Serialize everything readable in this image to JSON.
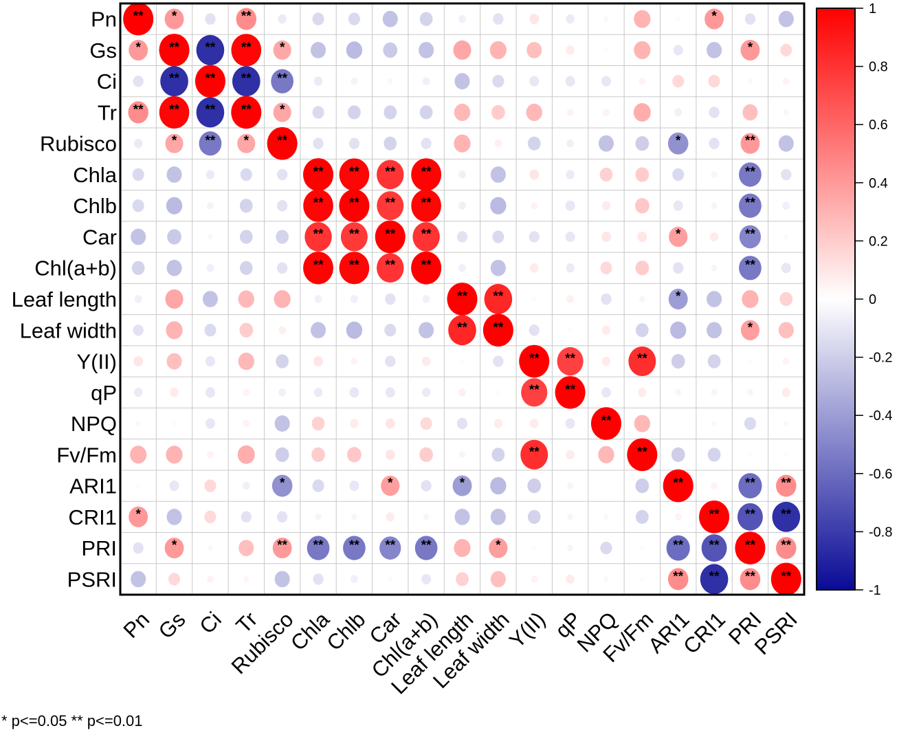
{
  "chart_data": {
    "type": "heatmap",
    "subtype": "correlation-circle-matrix",
    "title": "",
    "variables": [
      "Pn",
      "Gs",
      "Ci",
      "Tr",
      "Rubisco",
      "Chla",
      "Chlb",
      "Car",
      "Chl(a+b)",
      "Leaf length",
      "Leaf width",
      "Y(II)",
      "qP",
      "NPQ",
      "Fv/Fm",
      "ARI1",
      "CRI1",
      "PRI",
      "PSRI"
    ],
    "matrix": [
      [
        1.0,
        0.4,
        -0.12,
        0.45,
        -0.08,
        -0.15,
        -0.15,
        -0.25,
        -0.18,
        -0.06,
        -0.12,
        0.1,
        -0.08,
        0.03,
        0.3,
        0.02,
        0.4,
        -0.12,
        -0.25
      ],
      [
        0.4,
        1.0,
        -0.85,
        0.98,
        0.35,
        -0.25,
        -0.28,
        -0.22,
        -0.25,
        0.35,
        0.3,
        0.25,
        0.08,
        0.02,
        0.3,
        -0.1,
        -0.25,
        0.4,
        0.15
      ],
      [
        -0.12,
        -0.85,
        1.0,
        -0.85,
        -0.55,
        -0.08,
        -0.05,
        -0.03,
        -0.06,
        -0.25,
        -0.15,
        -0.1,
        -0.1,
        -0.1,
        0.05,
        0.15,
        0.15,
        0.03,
        0.05
      ],
      [
        0.45,
        0.98,
        -0.85,
        1.0,
        0.35,
        -0.15,
        -0.18,
        -0.18,
        -0.18,
        0.28,
        0.2,
        0.28,
        0.05,
        0.05,
        0.32,
        -0.06,
        -0.12,
        0.25,
        0.04
      ],
      [
        -0.08,
        0.35,
        -0.55,
        0.35,
        1.0,
        -0.12,
        -0.12,
        -0.18,
        -0.12,
        0.3,
        0.06,
        -0.18,
        -0.06,
        -0.25,
        -0.2,
        -0.45,
        -0.12,
        0.4,
        -0.25
      ],
      [
        -0.15,
        -0.25,
        -0.08,
        -0.15,
        -0.12,
        1.0,
        0.98,
        0.8,
        0.99,
        -0.06,
        -0.25,
        0.1,
        -0.08,
        0.18,
        0.2,
        -0.15,
        -0.04,
        -0.55,
        -0.12
      ],
      [
        -0.15,
        -0.28,
        -0.05,
        -0.18,
        -0.12,
        0.98,
        1.0,
        0.78,
        0.98,
        -0.06,
        -0.28,
        0.05,
        -0.1,
        0.08,
        0.22,
        -0.1,
        -0.04,
        -0.55,
        -0.06
      ],
      [
        -0.25,
        -0.22,
        -0.03,
        -0.18,
        -0.18,
        0.8,
        0.78,
        1.0,
        0.8,
        -0.12,
        -0.15,
        -0.12,
        -0.1,
        0.1,
        0.1,
        0.38,
        0.08,
        -0.5,
        -0.02
      ],
      [
        -0.18,
        -0.25,
        -0.06,
        -0.18,
        -0.12,
        0.99,
        0.98,
        0.8,
        1.0,
        -0.06,
        -0.25,
        0.08,
        -0.08,
        0.15,
        0.2,
        -0.12,
        -0.04,
        -0.55,
        -0.1
      ],
      [
        -0.06,
        0.35,
        -0.25,
        0.28,
        0.3,
        -0.06,
        -0.06,
        -0.12,
        -0.06,
        1.0,
        0.85,
        0.02,
        0.06,
        -0.12,
        -0.04,
        -0.4,
        -0.25,
        0.3,
        0.18
      ],
      [
        -0.12,
        0.3,
        -0.15,
        0.2,
        0.06,
        -0.25,
        -0.28,
        -0.15,
        -0.25,
        0.85,
        1.0,
        -0.12,
        0.02,
        0.08,
        -0.18,
        -0.28,
        -0.25,
        0.38,
        0.25
      ],
      [
        0.1,
        0.25,
        -0.1,
        0.28,
        -0.18,
        0.1,
        0.05,
        -0.12,
        0.08,
        0.02,
        -0.12,
        1.0,
        0.75,
        0.08,
        0.82,
        -0.2,
        -0.18,
        0.02,
        0.05
      ],
      [
        -0.08,
        0.08,
        -0.1,
        0.05,
        -0.06,
        -0.08,
        -0.1,
        -0.1,
        -0.08,
        0.06,
        0.02,
        0.75,
        1.0,
        -0.1,
        0.08,
        -0.04,
        -0.04,
        -0.04,
        0.08
      ],
      [
        0.03,
        0.02,
        -0.1,
        0.05,
        -0.25,
        0.18,
        0.08,
        0.1,
        0.15,
        -0.12,
        0.08,
        0.08,
        -0.1,
        1.0,
        0.28,
        0.0,
        0.03,
        -0.15,
        0.03
      ],
      [
        0.3,
        0.3,
        0.05,
        0.32,
        -0.2,
        0.2,
        0.22,
        0.1,
        0.2,
        -0.04,
        -0.18,
        0.82,
        0.08,
        0.28,
        1.0,
        -0.2,
        -0.18,
        0.02,
        0.02
      ],
      [
        0.02,
        -0.1,
        0.15,
        -0.06,
        -0.45,
        -0.15,
        -0.1,
        0.38,
        -0.12,
        -0.4,
        -0.28,
        -0.2,
        -0.04,
        0.0,
        -0.2,
        1.0,
        0.05,
        -0.6,
        0.45
      ],
      [
        0.4,
        -0.25,
        0.15,
        -0.12,
        -0.12,
        -0.04,
        -0.04,
        0.08,
        -0.04,
        -0.25,
        -0.25,
        -0.18,
        -0.04,
        0.03,
        -0.18,
        0.05,
        1.0,
        -0.7,
        -0.85
      ],
      [
        -0.12,
        0.4,
        0.03,
        0.25,
        0.4,
        -0.55,
        -0.55,
        -0.5,
        -0.55,
        0.3,
        0.38,
        0.02,
        -0.04,
        -0.15,
        0.02,
        -0.6,
        -0.7,
        1.0,
        0.45
      ],
      [
        -0.25,
        0.15,
        0.05,
        0.04,
        -0.25,
        -0.12,
        -0.06,
        -0.02,
        -0.1,
        0.18,
        0.25,
        0.05,
        0.08,
        0.03,
        0.02,
        0.45,
        -0.85,
        0.45,
        1.0
      ]
    ],
    "significance": [
      [
        "**",
        "*",
        "",
        "**",
        "",
        "",
        "",
        "",
        "",
        "",
        "",
        "",
        "",
        "",
        "",
        "",
        "*",
        "",
        ""
      ],
      [
        "*",
        "**",
        "**",
        "**",
        "*",
        "",
        "",
        "",
        "",
        "",
        "",
        "",
        "",
        "",
        "",
        "",
        "",
        "*",
        ""
      ],
      [
        "",
        "**",
        "**",
        "**",
        "**",
        "",
        "",
        "",
        "",
        "",
        "",
        "",
        "",
        "",
        "",
        "",
        "",
        "",
        ""
      ],
      [
        "**",
        "**",
        "**",
        "**",
        "*",
        "",
        "",
        "",
        "",
        "",
        "",
        "",
        "",
        "",
        "",
        "",
        "",
        "",
        ""
      ],
      [
        "",
        "*",
        "**",
        "*",
        "**",
        "",
        "",
        "",
        "",
        "",
        "",
        "",
        "",
        "",
        "",
        "*",
        "",
        "**",
        ""
      ],
      [
        "",
        "",
        "",
        "",
        "",
        "**",
        "**",
        "**",
        "**",
        "",
        "",
        "",
        "",
        "",
        "",
        "",
        "",
        "**",
        ""
      ],
      [
        "",
        "",
        "",
        "",
        "",
        "**",
        "**",
        "**",
        "**",
        "",
        "",
        "",
        "",
        "",
        "",
        "",
        "",
        "**",
        ""
      ],
      [
        "",
        "",
        "",
        "",
        "",
        "**",
        "**",
        "**",
        "**",
        "",
        "",
        "",
        "",
        "",
        "",
        "*",
        "",
        "**",
        ""
      ],
      [
        "",
        "",
        "",
        "",
        "",
        "**",
        "**",
        "**",
        "**",
        "",
        "",
        "",
        "",
        "",
        "",
        "",
        "",
        "**",
        ""
      ],
      [
        "",
        "",
        "",
        "",
        "",
        "",
        "",
        "",
        "",
        "**",
        "**",
        "",
        "",
        "",
        "",
        "*",
        "",
        "",
        ""
      ],
      [
        "",
        "",
        "",
        "",
        "",
        "",
        "",
        "",
        "",
        "**",
        "**",
        "",
        "",
        "",
        "",
        "",
        "",
        "*",
        ""
      ],
      [
        "",
        "",
        "",
        "",
        "",
        "",
        "",
        "",
        "",
        "",
        "",
        "**",
        "**",
        "",
        "**",
        "",
        "",
        "",
        ""
      ],
      [
        "",
        "",
        "",
        "",
        "",
        "",
        "",
        "",
        "",
        "",
        "",
        "**",
        "**",
        "",
        "",
        "",
        "",
        "",
        ""
      ],
      [
        "",
        "",
        "",
        "",
        "",
        "",
        "",
        "",
        "",
        "",
        "",
        "",
        "",
        "**",
        "",
        "",
        "",
        "",
        ""
      ],
      [
        "",
        "",
        "",
        "",
        "",
        "",
        "",
        "",
        "",
        "",
        "",
        "**",
        "",
        "",
        "**",
        "",
        "",
        "",
        ""
      ],
      [
        "",
        "",
        "",
        "",
        "*",
        "",
        "",
        "*",
        "",
        "*",
        "",
        "",
        "",
        "",
        "",
        "**",
        "",
        "**",
        "**"
      ],
      [
        "*",
        "",
        "",
        "",
        "",
        "",
        "",
        "",
        "",
        "",
        "",
        "",
        "",
        "",
        "",
        "",
        "**",
        "**",
        "**"
      ],
      [
        "",
        "*",
        "",
        "",
        "**",
        "**",
        "**",
        "**",
        "**",
        "",
        "*",
        "",
        "",
        "",
        "",
        "**",
        "**",
        "**",
        "**"
      ],
      [
        "",
        "",
        "",
        "",
        "",
        "",
        "",
        "",
        "",
        "",
        "",
        "",
        "",
        "",
        "",
        "**",
        "**",
        "**",
        "**"
      ]
    ],
    "colorbar": {
      "range": [
        -1,
        1
      ],
      "ticks": [
        "1",
        "0.8",
        "0.6",
        "0.4",
        "0.2",
        "0",
        "-0.2",
        "-0.4",
        "-0.6",
        "-0.8",
        "-1"
      ],
      "tick_values": [
        1,
        0.8,
        0.6,
        0.4,
        0.2,
        0,
        -0.2,
        -0.4,
        -0.6,
        -0.8,
        -1
      ],
      "colors": {
        "positive": "#ff0000",
        "zero": "#ffffff",
        "negative": "#0a0a96"
      },
      "placement": "right"
    },
    "footnote": "* p<=0.05  ** p<=0.01",
    "grid": true
  }
}
